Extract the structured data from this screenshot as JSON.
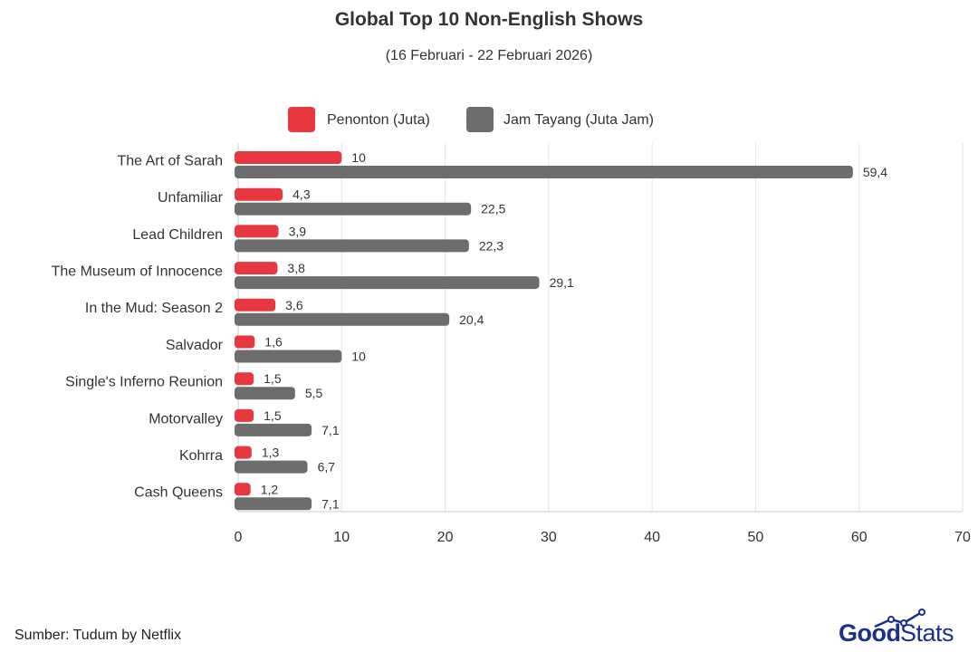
{
  "chart_data": {
    "type": "bar",
    "orientation": "horizontal",
    "title": "Global Top 10 Non-English Shows",
    "subtitle": "(16 Februari - 22 Februari 2026)",
    "categories": [
      "The Art of Sarah",
      "Unfamiliar",
      "Lead Children",
      "The Museum of Innocence",
      "In the Mud: Season 2",
      "Salvador",
      "Single's Inferno Reunion",
      "Motorvalley",
      "Kohrra",
      "Cash Queens"
    ],
    "series": [
      {
        "name": "Penonton (Juta)",
        "color": "#e8383f",
        "values": [
          10,
          4.3,
          3.9,
          3.8,
          3.6,
          1.6,
          1.5,
          1.5,
          1.3,
          1.2
        ],
        "labels": [
          "10",
          "4,3",
          "3,9",
          "3,8",
          "3,6",
          "1,6",
          "1,5",
          "1,5",
          "1,3",
          "1,2"
        ]
      },
      {
        "name": "Jam Tayang (Juta Jam)",
        "color": "#6d6d6d",
        "values": [
          59.4,
          22.5,
          22.3,
          29.1,
          20.4,
          10,
          5.5,
          7.1,
          6.7,
          7.1
        ],
        "labels": [
          "59,4",
          "22,5",
          "22,3",
          "29,1",
          "20,4",
          "10",
          "5,5",
          "7,1",
          "6,7",
          "7,1"
        ]
      }
    ],
    "xlim": [
      0,
      70
    ],
    "xticks": [
      "0",
      "10",
      "20",
      "30",
      "40",
      "50",
      "60",
      "70"
    ],
    "grid": true,
    "legend_position": "top-center"
  },
  "footer": {
    "source": "Sumber: Tudum by Netflix"
  },
  "logo": {
    "part1": "Good",
    "part2": "Stats",
    "color": "#1b2f8f"
  }
}
